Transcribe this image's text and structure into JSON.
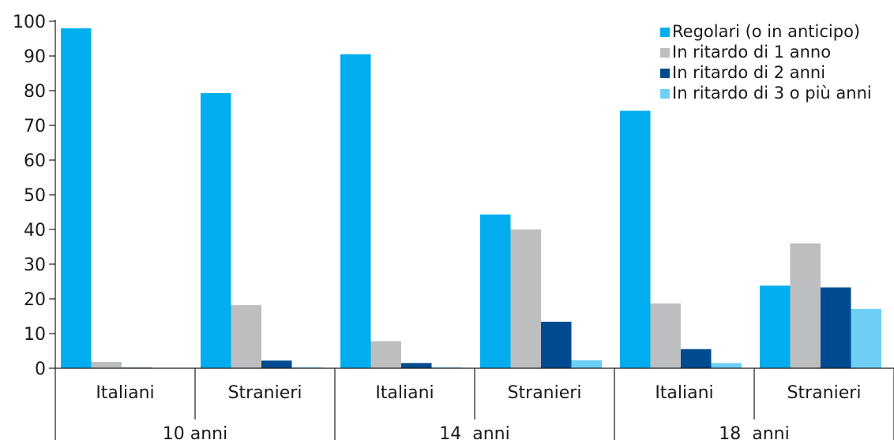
{
  "chart_data": {
    "type": "bar",
    "title": "",
    "xlabel": "",
    "ylabel": "",
    "ylim": [
      0,
      100
    ],
    "yticks": [
      "0",
      "10",
      "20",
      "30",
      "40",
      "50",
      "60",
      "70",
      "80",
      "90",
      "100"
    ],
    "categories": [
      "Italiani",
      "Stranieri",
      "Italiani",
      "Stranieri",
      "Italiani",
      "Stranieri"
    ],
    "groups": [
      {
        "label": "10 anni",
        "span": 2
      },
      {
        "label": "14  anni",
        "span": 2
      },
      {
        "label": "18  anni",
        "span": 2
      }
    ],
    "series": [
      {
        "name": "Regolari (o in anticipo)",
        "color": "#00AEEF",
        "values": [
          98,
          79.3,
          90.5,
          44.3,
          74.2,
          23.8
        ]
      },
      {
        "name": "In ritardo di 1 anno",
        "color": "#BDBEC0",
        "values": [
          1.8,
          18.2,
          7.8,
          40,
          18.7,
          36
        ]
      },
      {
        "name": "In ritardo di 2 anni",
        "color": "#004A8F",
        "values": [
          0.2,
          2.2,
          1.5,
          13.4,
          5.5,
          23.3
        ]
      },
      {
        "name": "In ritardo di 3 o più anni",
        "color": "#6DCFF6",
        "values": [
          0.1,
          0.3,
          0.3,
          2.3,
          1.5,
          17.1
        ]
      }
    ],
    "grid": false,
    "legend": "top-right"
  }
}
